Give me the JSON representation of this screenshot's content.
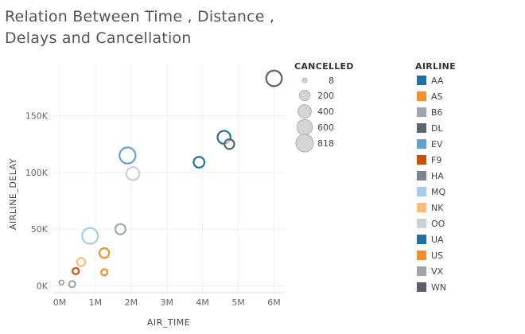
{
  "title_lines": [
    "Relation Between Time , Distance ,",
    "Delays and Cancellation"
  ],
  "chart_data": {
    "type": "scatter",
    "xlabel": "AIR_TIME",
    "ylabel": "AIRLINE_DELAY",
    "xlim": [
      -200000,
      6300000
    ],
    "ylim": [
      -6000,
      196000
    ],
    "x_ticks": [
      0,
      1000000,
      2000000,
      3000000,
      4000000,
      5000000,
      6000000
    ],
    "x_tick_labels": [
      "0M",
      "1M",
      "2M",
      "3M",
      "4M",
      "5M",
      "6M"
    ],
    "y_ticks": [
      0,
      50000,
      100000,
      150000
    ],
    "y_tick_labels": [
      "0K",
      "50K",
      "100K",
      "150K"
    ],
    "grid": true,
    "size_legend": {
      "title": "CANCELLED",
      "values": [
        8,
        200,
        400,
        600,
        818
      ],
      "labels": [
        "8",
        "200",
        "400",
        "600",
        "818"
      ]
    },
    "color_legend": {
      "title": "AIRLINE",
      "items": [
        {
          "name": "AA",
          "color": "#1f6fa8"
        },
        {
          "name": "AS",
          "color": "#f28e2b"
        },
        {
          "name": "B6",
          "color": "#a0a6ad"
        },
        {
          "name": "DL",
          "color": "#5b6670"
        },
        {
          "name": "EV",
          "color": "#5fa2ce"
        },
        {
          "name": "F9",
          "color": "#c85200"
        },
        {
          "name": "HA",
          "color": "#7b848f"
        },
        {
          "name": "MQ",
          "color": "#a3cce9"
        },
        {
          "name": "NK",
          "color": "#ffbc79"
        },
        {
          "name": "OO",
          "color": "#c8d0d9"
        },
        {
          "name": "UA",
          "color": "#1f6fa8"
        },
        {
          "name": "US",
          "color": "#f28e2b"
        },
        {
          "name": "VX",
          "color": "#a0a6ad"
        },
        {
          "name": "WN",
          "color": "#57606c"
        }
      ]
    },
    "points": [
      {
        "airline": "WN",
        "x": 6000000,
        "y": 183000,
        "cancelled": 620
      },
      {
        "airline": "AA",
        "x": 4600000,
        "y": 131000,
        "cancelled": 380
      },
      {
        "airline": "DL",
        "x": 4750000,
        "y": 125000,
        "cancelled": 170
      },
      {
        "airline": "UA",
        "x": 3900000,
        "y": 109000,
        "cancelled": 230
      },
      {
        "airline": "EV",
        "x": 1900000,
        "y": 115000,
        "cancelled": 660
      },
      {
        "airline": "OO",
        "x": 2050000,
        "y": 99000,
        "cancelled": 380
      },
      {
        "airline": "MQ",
        "x": 850000,
        "y": 44000,
        "cancelled": 640
      },
      {
        "airline": "B6",
        "x": 1700000,
        "y": 50000,
        "cancelled": 200
      },
      {
        "airline": "US",
        "x": 1250000,
        "y": 29000,
        "cancelled": 170
      },
      {
        "airline": "NK",
        "x": 600000,
        "y": 21000,
        "cancelled": 100
      },
      {
        "airline": "AS",
        "x": 1250000,
        "y": 12000,
        "cancelled": 40
      },
      {
        "airline": "F9",
        "x": 450000,
        "y": 13000,
        "cancelled": 40
      },
      {
        "airline": "HA",
        "x": 50000,
        "y": 3000,
        "cancelled": 10
      },
      {
        "airline": "VX",
        "x": 350000,
        "y": 1500,
        "cancelled": 40
      }
    ]
  }
}
